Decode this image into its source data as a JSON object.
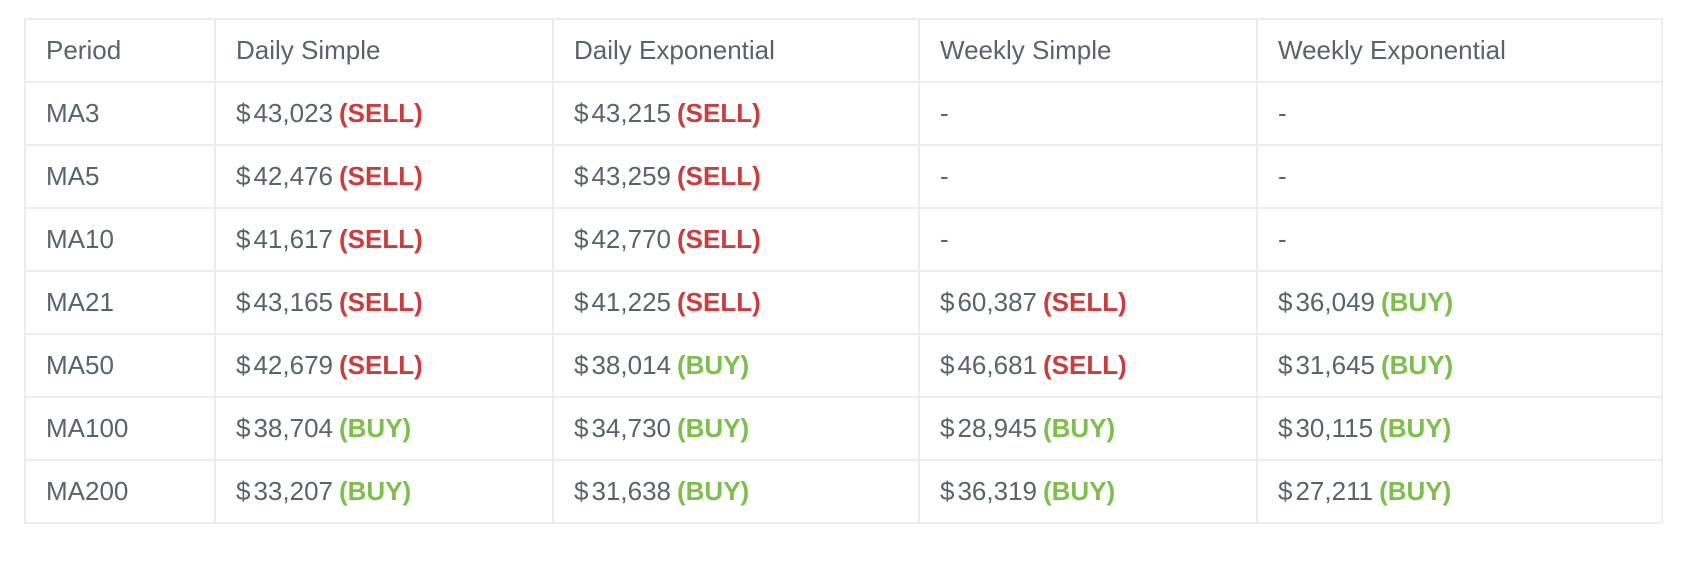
{
  "table": {
    "headers": [
      "Period",
      "Daily Simple",
      "Daily Exponential",
      "Weekly Simple",
      "Weekly Exponential"
    ],
    "currency_symbol": "$",
    "colors": {
      "sell": "#cf3a3a",
      "buy": "#7cc04a",
      "text": "#5a6270",
      "border": "#ebedf0"
    },
    "rows": [
      {
        "period": "MA3",
        "cells": [
          {
            "price": "43,023",
            "signal": "(SELL)"
          },
          {
            "price": "43,215",
            "signal": "(SELL)"
          },
          {
            "empty": "-"
          },
          {
            "empty": "-"
          }
        ]
      },
      {
        "period": "MA5",
        "cells": [
          {
            "price": "42,476",
            "signal": "(SELL)"
          },
          {
            "price": "43,259",
            "signal": "(SELL)"
          },
          {
            "empty": "-"
          },
          {
            "empty": "-"
          }
        ]
      },
      {
        "period": "MA10",
        "cells": [
          {
            "price": "41,617",
            "signal": "(SELL)"
          },
          {
            "price": "42,770",
            "signal": "(SELL)"
          },
          {
            "empty": "-"
          },
          {
            "empty": "-"
          }
        ]
      },
      {
        "period": "MA21",
        "cells": [
          {
            "price": "43,165",
            "signal": "(SELL)"
          },
          {
            "price": "41,225",
            "signal": "(SELL)"
          },
          {
            "price": "60,387",
            "signal": "(SELL)"
          },
          {
            "price": "36,049",
            "signal": "(BUY)"
          }
        ]
      },
      {
        "period": "MA50",
        "cells": [
          {
            "price": "42,679",
            "signal": "(SELL)"
          },
          {
            "price": "38,014",
            "signal": "(BUY)"
          },
          {
            "price": "46,681",
            "signal": "(SELL)"
          },
          {
            "price": "31,645",
            "signal": "(BUY)"
          }
        ]
      },
      {
        "period": "MA100",
        "cells": [
          {
            "price": "38,704",
            "signal": "(BUY)"
          },
          {
            "price": "34,730",
            "signal": "(BUY)"
          },
          {
            "price": "28,945",
            "signal": "(BUY)"
          },
          {
            "price": "30,115",
            "signal": "(BUY)"
          }
        ]
      },
      {
        "period": "MA200",
        "cells": [
          {
            "price": "33,207",
            "signal": "(BUY)"
          },
          {
            "price": "31,638",
            "signal": "(BUY)"
          },
          {
            "price": "36,319",
            "signal": "(BUY)"
          },
          {
            "price": "27,211",
            "signal": "(BUY)"
          }
        ]
      }
    ]
  }
}
